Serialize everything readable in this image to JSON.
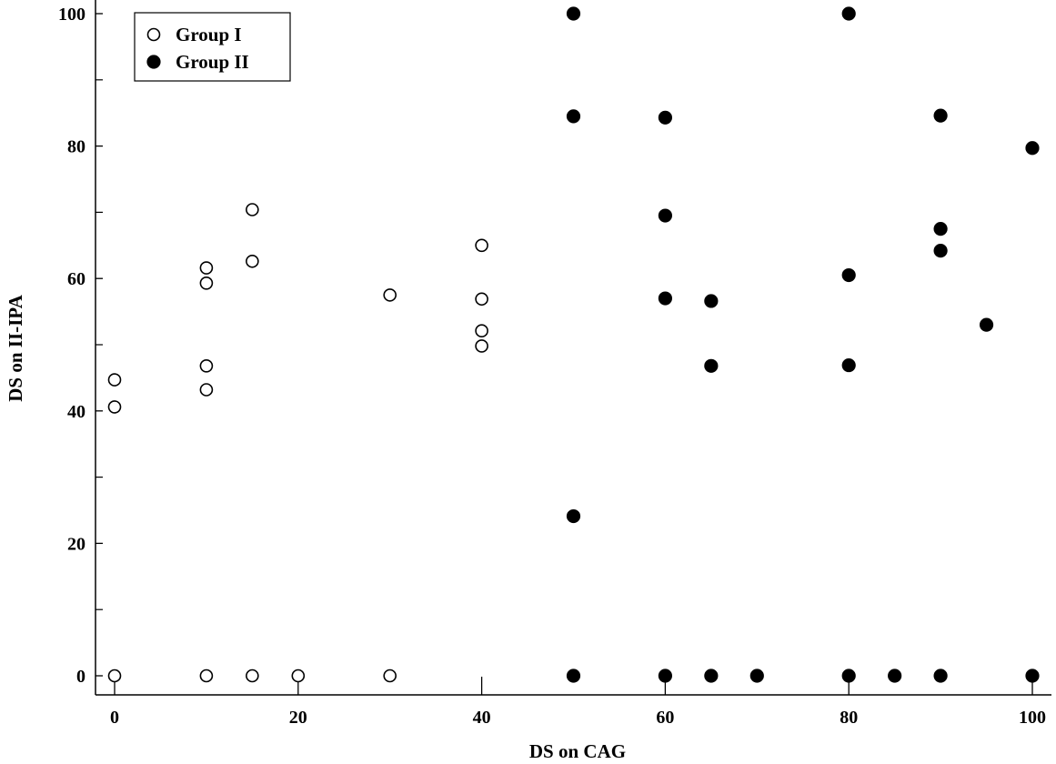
{
  "chart_data": {
    "type": "scatter",
    "xlabel": "DS on CAG",
    "ylabel": "DS on II-IPA",
    "xlim": [
      -2,
      102
    ],
    "ylim": [
      -3,
      101
    ],
    "x_ticks": [
      0,
      20,
      40,
      60,
      80,
      100
    ],
    "x_tick_labels": [
      "0",
      "20",
      "40",
      "60",
      "80",
      "100"
    ],
    "y_ticks": [
      0,
      20,
      40,
      60,
      80,
      100
    ],
    "y_tick_labels": [
      "0",
      "20",
      "40",
      "60",
      "80",
      "100"
    ],
    "y_minor_ticks": [
      10,
      30,
      50,
      70,
      90
    ],
    "grid": false,
    "legend_position": "top-left",
    "series": [
      {
        "name": "Group I",
        "marker": "open-circle",
        "color": "#000000",
        "points": [
          [
            0,
            0
          ],
          [
            0,
            40.6
          ],
          [
            0,
            44.7
          ],
          [
            10,
            0
          ],
          [
            10,
            43.2
          ],
          [
            10,
            46.8
          ],
          [
            10,
            59.3
          ],
          [
            10,
            61.6
          ],
          [
            15,
            0
          ],
          [
            15,
            62.6
          ],
          [
            15,
            70.4
          ],
          [
            20,
            0
          ],
          [
            30,
            0
          ],
          [
            30,
            57.5
          ],
          [
            40,
            49.8
          ],
          [
            40,
            52.1
          ],
          [
            40,
            56.9
          ],
          [
            40,
            65.0
          ]
        ]
      },
      {
        "name": "Group II",
        "marker": "filled-circle",
        "color": "#000000",
        "points": [
          [
            50,
            0
          ],
          [
            50,
            24.1
          ],
          [
            50,
            84.5
          ],
          [
            50,
            100
          ],
          [
            60,
            0
          ],
          [
            60,
            57.0
          ],
          [
            60,
            69.5
          ],
          [
            60,
            84.3
          ],
          [
            65,
            0
          ],
          [
            65,
            46.8
          ],
          [
            65,
            56.6
          ],
          [
            70,
            0
          ],
          [
            80,
            0
          ],
          [
            80,
            46.9
          ],
          [
            80,
            60.5
          ],
          [
            80,
            100
          ],
          [
            85,
            0
          ],
          [
            90,
            0
          ],
          [
            90,
            64.2
          ],
          [
            90,
            67.5
          ],
          [
            90,
            84.6
          ],
          [
            95,
            53.0
          ],
          [
            100,
            0
          ],
          [
            100,
            79.7
          ]
        ]
      }
    ]
  }
}
